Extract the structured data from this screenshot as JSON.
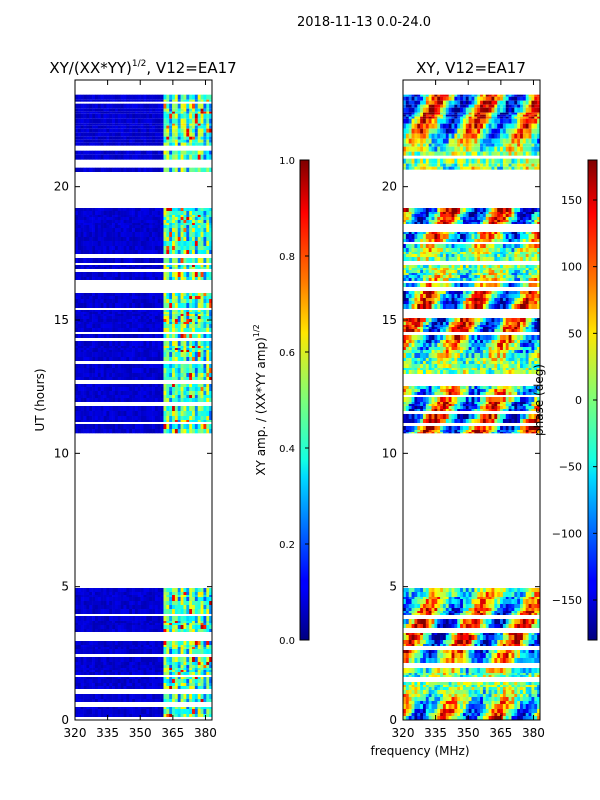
{
  "suptitle": "2018-11-13 0.0-24.0",
  "xlabel_shared": "frequency (MHz)",
  "colors": {
    "axis": "#000000",
    "background": "#ffffff"
  },
  "chart_data": [
    {
      "type": "heatmap",
      "title": "XY/(XX*YY)",
      "title_exp": "1/2",
      "title_suffix": ", V12=EA17",
      "xlabel": "frequency (MHz)",
      "ylabel": "UT (hours)",
      "xlim": [
        320,
        383
      ],
      "ylim": [
        0,
        24
      ],
      "xticks": [
        320,
        335,
        350,
        365,
        380
      ],
      "yticks": [
        0,
        5,
        10,
        15,
        20
      ],
      "data_hours": [
        [
          0.0,
          4.95
        ],
        [
          10.75,
          19.2
        ],
        [
          20.55,
          23.45
        ]
      ],
      "bright_channels_mhz": [
        362,
        366,
        370,
        374,
        378,
        381
      ],
      "colorbar": {
        "label": "XY amp. / (XX*YY amp)",
        "label_exp": "1/2",
        "range": [
          0.0,
          1.0
        ],
        "ticks": [
          "0.0",
          "0.2",
          "0.4",
          "0.6",
          "0.8",
          "1.0"
        ]
      }
    },
    {
      "type": "heatmap",
      "title": "XY, V12=EA17",
      "xlabel": "frequency (MHz)",
      "ylabel": "",
      "xlim": [
        320,
        383
      ],
      "ylim": [
        0,
        24
      ],
      "xticks": [
        320,
        335,
        350,
        365,
        380
      ],
      "yticks": [
        0,
        5,
        10,
        15,
        20
      ],
      "data_hours": [
        [
          0.0,
          4.95
        ],
        [
          10.75,
          19.2
        ],
        [
          20.55,
          23.45
        ]
      ],
      "colorbar": {
        "label": "phase (deg)",
        "range": [
          -180,
          180
        ],
        "ticks": [
          "−150",
          "−100",
          "−50",
          "0",
          "50",
          "100",
          "150"
        ]
      }
    }
  ]
}
